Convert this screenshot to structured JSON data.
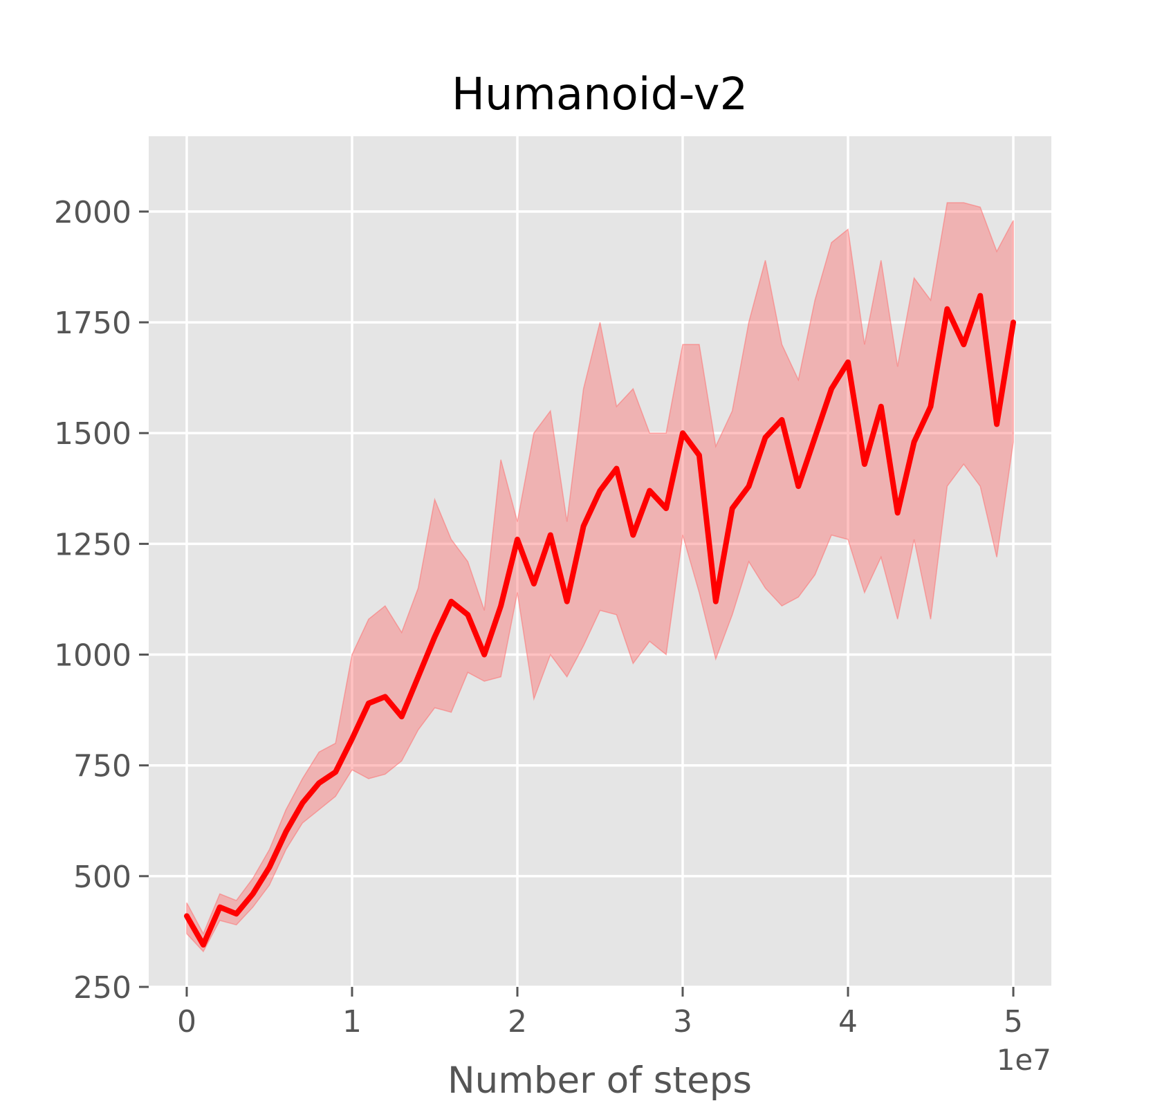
{
  "chart_data": {
    "type": "line",
    "title": "Humanoid-v2",
    "xlabel": "Number of steps",
    "ylabel": "",
    "x_scale_label": "1e7",
    "xlim": [
      -0.23,
      5.23
    ],
    "ylim": [
      250,
      2170
    ],
    "x_ticks": [
      0,
      1,
      2,
      3,
      4,
      5
    ],
    "y_ticks": [
      250,
      500,
      750,
      1000,
      1250,
      1500,
      1750,
      2000
    ],
    "grid": true,
    "style": "ggplot",
    "colors": {
      "line": "#ff0000",
      "band": "#ff6666",
      "axes_bg": "#e5e5e5",
      "grid": "#ffffff"
    },
    "series": [
      {
        "x": [
          0.0,
          0.1,
          0.2,
          0.3,
          0.4,
          0.5,
          0.6,
          0.7,
          0.8,
          0.9,
          1.0,
          1.1,
          1.2,
          1.3,
          1.4,
          1.5,
          1.6,
          1.7,
          1.8,
          1.9,
          2.0,
          2.1,
          2.2,
          2.3,
          2.4,
          2.5,
          2.6,
          2.7,
          2.8,
          2.9,
          3.0,
          3.1,
          3.2,
          3.3,
          3.4,
          3.5,
          3.6,
          3.7,
          3.8,
          3.9,
          4.0,
          4.1,
          4.2,
          4.3,
          4.4,
          4.5,
          4.6,
          4.7,
          4.8,
          4.9,
          5.0
        ],
        "mean": [
          410,
          345,
          430,
          415,
          460,
          520,
          600,
          665,
          710,
          735,
          810,
          890,
          905,
          860,
          950,
          1040,
          1120,
          1090,
          1000,
          1110,
          1260,
          1160,
          1270,
          1120,
          1290,
          1370,
          1420,
          1270,
          1370,
          1330,
          1500,
          1450,
          1120,
          1330,
          1380,
          1490,
          1530,
          1380,
          1490,
          1600,
          1660,
          1430,
          1560,
          1320,
          1480,
          1560,
          1780,
          1700,
          1810,
          1520,
          1750
        ],
        "upper": [
          440,
          370,
          460,
          445,
          495,
          560,
          650,
          720,
          780,
          800,
          1000,
          1080,
          1110,
          1050,
          1150,
          1350,
          1260,
          1210,
          1100,
          1440,
          1300,
          1500,
          1550,
          1300,
          1600,
          1750,
          1560,
          1600,
          1500,
          1500,
          1700,
          1700,
          1470,
          1550,
          1750,
          1890,
          1700,
          1620,
          1800,
          1930,
          1960,
          1700,
          1890,
          1650,
          1850,
          1800,
          2020,
          2020,
          2010,
          1910,
          1980
        ],
        "lower": [
          370,
          330,
          400,
          390,
          430,
          480,
          560,
          620,
          650,
          680,
          740,
          720,
          730,
          760,
          830,
          880,
          870,
          960,
          940,
          950,
          1140,
          900,
          1000,
          950,
          1020,
          1100,
          1090,
          980,
          1030,
          1000,
          1270,
          1140,
          990,
          1090,
          1210,
          1150,
          1110,
          1130,
          1180,
          1270,
          1260,
          1140,
          1220,
          1080,
          1260,
          1080,
          1380,
          1430,
          1380,
          1220,
          1480
        ]
      }
    ]
  }
}
